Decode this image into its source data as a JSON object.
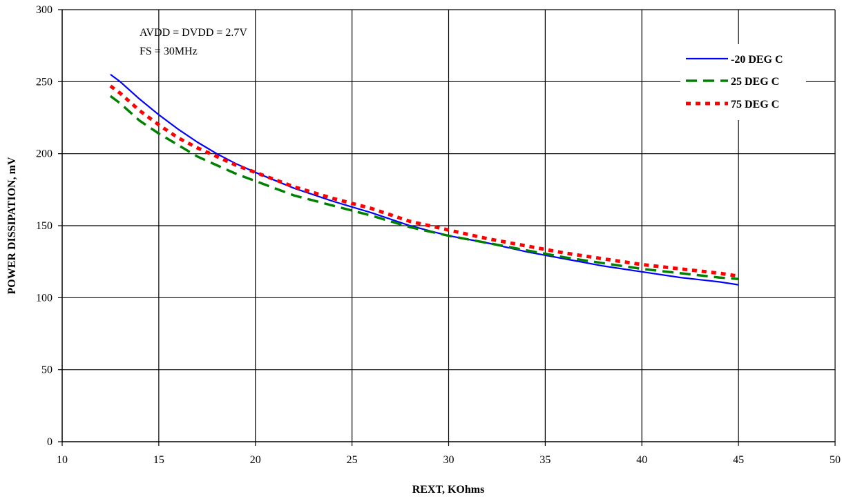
{
  "chart_data": {
    "type": "line",
    "title": "",
    "xlabel": "REXT, KOhms",
    "ylabel": "POWER DISSIPATION, mV",
    "xlim": [
      10,
      50
    ],
    "ylim": [
      0,
      300
    ],
    "x_ticks": [
      "10",
      "15",
      "20",
      "25",
      "30",
      "35",
      "40",
      "45",
      "50"
    ],
    "y_ticks": [
      "0",
      "50",
      "100",
      "150",
      "200",
      "250",
      "300"
    ],
    "grid": true,
    "legend_position": "top-right",
    "annotations": [
      "AVDD = DVDD = 2.7V",
      "FS = 30MHz"
    ],
    "series": [
      {
        "name": "-20 DEG C",
        "color": "#0000ff",
        "dash": "solid",
        "x": [
          12.5,
          13,
          14,
          15,
          16,
          17,
          18,
          19,
          20,
          22,
          24,
          26,
          28,
          30,
          32,
          34,
          36,
          38,
          40,
          42,
          44,
          45
        ],
        "y": [
          255,
          250,
          238,
          227,
          217,
          208,
          200,
          193,
          187,
          176,
          167,
          159,
          150,
          143,
          138,
          132,
          127,
          122,
          118,
          114,
          111,
          109
        ]
      },
      {
        "name": "25 DEG C",
        "color": "#008000",
        "dash": "dashed",
        "x": [
          12.5,
          13,
          14,
          15,
          16,
          17,
          18,
          19,
          20,
          22,
          24,
          26,
          28,
          30,
          32,
          34,
          36,
          38,
          40,
          42,
          44,
          45
        ],
        "y": [
          240,
          235,
          223,
          214,
          206,
          198,
          192,
          186,
          181,
          171,
          164,
          157,
          149,
          143,
          138,
          133,
          128,
          124,
          120,
          117,
          114,
          113
        ]
      },
      {
        "name": "75 DEG C",
        "color": "#ff0000",
        "dash": "dotted",
        "x": [
          12.5,
          13,
          14,
          15,
          16,
          17,
          18,
          19,
          20,
          22,
          24,
          26,
          28,
          30,
          32,
          34,
          36,
          38,
          40,
          42,
          44,
          45
        ],
        "y": [
          247,
          242,
          230,
          220,
          211,
          204,
          198,
          192,
          187,
          177,
          169,
          162,
          153,
          147,
          141,
          136,
          131,
          127,
          123,
          120,
          117,
          115
        ]
      }
    ]
  }
}
